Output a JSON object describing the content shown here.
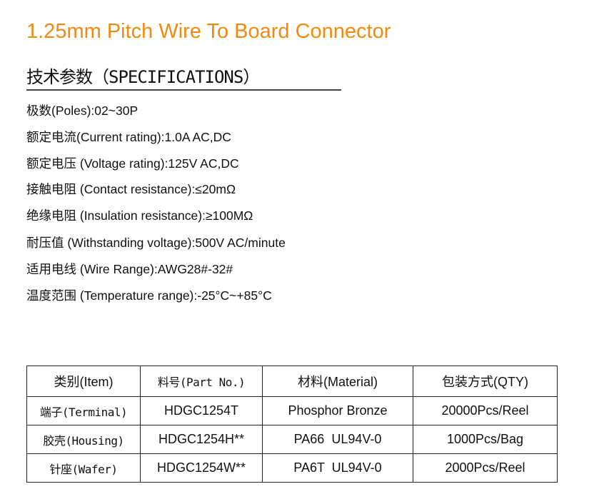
{
  "title": "1.25mm Pitch Wire To Board Connector",
  "heading": "技术参数（SPECIFICATIONS）",
  "title_color": "#F28A0F",
  "specs": [
    "极数(Poles):02~30P",
    "额定电流(Current rating):1.0A AC,DC",
    "额定电压 (Voltage rating):125V AC,DC",
    "接触电阻 (Contact resistance):≤20mΩ",
    "绝缘电阻 (Insulation resistance):≥100MΩ",
    "耐压值 (Withstanding voltage):500V AC/minute",
    "适用电线 (Wire Range):AWG28#-32#",
    "温度范围 (Temperature range):-25°C~+85°C"
  ],
  "table": {
    "headers": [
      "类别(Item)",
      "料号(Part No.)",
      "材料(Material)",
      "包装方式(QTY)"
    ],
    "rows": [
      [
        "端子(Terminal)",
        "HDGC1254T",
        "Phosphor Bronze",
        "20000Pcs/Reel"
      ],
      [
        "胶壳(Housing)",
        "HDGC1254H**",
        "PA66  UL94V-0",
        "1000Pcs/Bag"
      ],
      [
        "针座(Wafer)",
        "HDGC1254W**",
        "PA6T  UL94V-0",
        "2000Pcs/Reel"
      ]
    ]
  }
}
